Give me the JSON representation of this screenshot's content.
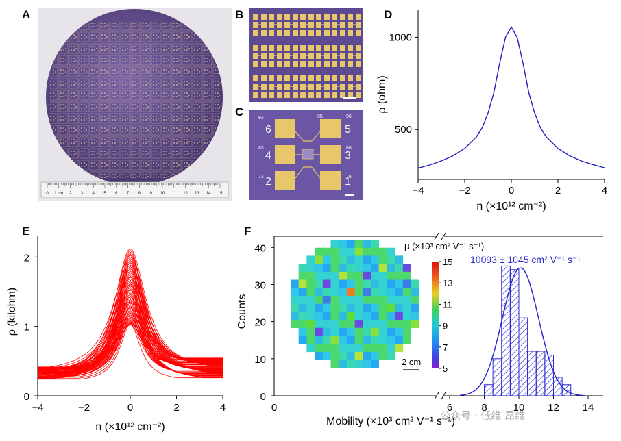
{
  "panels": {
    "A": "A",
    "B": "B",
    "C": "C",
    "D": "D",
    "E": "E",
    "F": "F"
  },
  "wafer": {
    "ruler_ticks": [
      "0",
      "1 cm",
      "2",
      "3",
      "4",
      "5",
      "6",
      "7",
      "8",
      "9",
      "10",
      "11",
      "12",
      "13",
      "14",
      "15"
    ]
  },
  "device": {
    "pad_labels": [
      "6",
      "5",
      "4",
      "3",
      "2",
      "1"
    ],
    "pad_numbers": [
      "93",
      "95",
      "96",
      "83",
      "86",
      "73",
      "76"
    ]
  },
  "watermark": {
    "text": "公众号 · 低维 昂维"
  },
  "colors": {
    "wafer_purple": "#5b4585",
    "device_purple": "#6b55a5",
    "gold": "#e8c76a",
    "d_line": "#2020c0",
    "e_line": "#ff0000",
    "f_hist": "#2a2ad0",
    "f_label": "#2a2ad0"
  },
  "chart_data": [
    {
      "id": "D",
      "type": "line",
      "title": "",
      "xlabel": "n (×10¹² cm⁻²)",
      "ylabel": "ρ (ohm)",
      "xlim": [
        -4,
        4
      ],
      "ylim": [
        230,
        1150
      ],
      "xticks": [
        "−4",
        "−2",
        "0",
        "2",
        "4"
      ],
      "xtick_values": [
        -4,
        -2,
        0,
        2,
        4
      ],
      "yticks": [
        "500",
        "1000"
      ],
      "ytick_values": [
        500,
        1000
      ],
      "series": [
        {
          "name": "ρ",
          "x": [
            -4,
            -3.5,
            -3,
            -2.5,
            -2,
            -1.5,
            -1.25,
            -1,
            -0.75,
            -0.5,
            -0.25,
            0,
            0.25,
            0.5,
            0.75,
            1,
            1.25,
            1.5,
            2,
            2.5,
            3,
            3.5,
            4
          ],
          "y": [
            291,
            308,
            330,
            358,
            398,
            460,
            510,
            590,
            700,
            860,
            1000,
            1055,
            1000,
            860,
            700,
            590,
            510,
            460,
            398,
            358,
            330,
            310,
            293
          ]
        }
      ]
    },
    {
      "id": "E",
      "type": "line",
      "title": "",
      "xlabel": "n (×10¹² cm⁻²)",
      "ylabel": "ρ (kilohm)",
      "xlim": [
        -4,
        4
      ],
      "ylim": [
        0,
        2.3
      ],
      "xticks": [
        "−4",
        "−2",
        "0",
        "2",
        "4"
      ],
      "xtick_values": [
        -4,
        -2,
        0,
        2,
        4
      ],
      "yticks": [
        "0",
        "1",
        "2"
      ],
      "ytick_values": [
        0,
        1,
        2
      ],
      "series_summary": {
        "count": 60,
        "peak_range": [
          1.03,
          2.12
        ],
        "tail_at_minus4_range": [
          0.24,
          0.42
        ],
        "tail_at_plus4_range": [
          0.26,
          0.55
        ]
      }
    },
    {
      "id": "F",
      "type": "bar",
      "title": "",
      "xlabel": "Mobility (×10³ cm² V⁻¹ s⁻¹)",
      "ylabel": "Counts",
      "xlim": [
        6,
        14
      ],
      "ylim": [
        0,
        43
      ],
      "xticks": [
        "0",
        "6",
        "8",
        "10",
        "12",
        "14"
      ],
      "yticks": [
        "0",
        "10",
        "20",
        "30",
        "40"
      ],
      "ytick_values": [
        0,
        10,
        20,
        30,
        40
      ],
      "bin_width": 0.5,
      "bins": [
        8.0,
        8.5,
        9.0,
        9.5,
        10.0,
        10.5,
        11.0,
        11.5,
        12.0,
        12.5
      ],
      "counts": [
        3,
        10,
        35,
        34,
        21,
        12,
        12,
        11,
        5,
        3
      ],
      "gaussian_fit": {
        "mean": 10.093,
        "std": 1.045,
        "peak": 34.5
      },
      "annotation": "10093 ± 1045 cm² V⁻¹ s⁻¹",
      "inset_map": {
        "title": "μ (×10³ cm² V⁻¹ s⁻¹)",
        "colorbar_ticks": [
          "15",
          "13",
          "11",
          "9",
          "7",
          "5"
        ],
        "scale_bar": "2 cm"
      }
    }
  ]
}
